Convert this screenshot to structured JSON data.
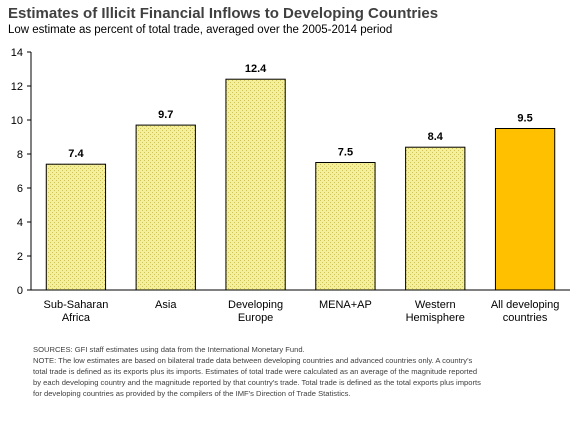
{
  "chart_data": {
    "type": "bar",
    "title": "Estimates of Illicit Financial Inflows to Developing Countries",
    "subtitle": "Low estimate as percent of total trade, averaged over the 2005-2014 period",
    "categories": [
      [
        "Sub-Saharan",
        "Africa"
      ],
      [
        "Asia"
      ],
      [
        "Developing",
        "Europe"
      ],
      [
        "MENA+AP"
      ],
      [
        "Western",
        "Hemisphere"
      ],
      [
        "All developing",
        "countries"
      ]
    ],
    "values": [
      7.4,
      9.7,
      12.4,
      7.5,
      8.4,
      9.5
    ],
    "data_labels": [
      "7.4",
      "9.7",
      "12.4",
      "7.5",
      "8.4",
      "9.5"
    ],
    "ylim": [
      0,
      14
    ],
    "yticks": [
      0,
      2,
      4,
      6,
      8,
      10,
      12,
      14
    ],
    "grid": false,
    "legend": "none",
    "colors": {
      "regional_fill": "#f3ef9a",
      "regional_hatch": "#cfc35a",
      "total_fill": "#ffc000",
      "bar_border": "#000000"
    },
    "highlight_index": 5
  },
  "notes": {
    "sources": "SOURCES: GFI staff estimates using data from the International Monetary Fund.",
    "note_lines": [
      "NOTE: The low estimates are based on bilateral trade data between developing countries and advanced countries only.  A country's",
      "total trade is defined as its exports plus its imports.  Estimates of total trade were calculated as an average of the magnitude reported",
      "by each developing country and the magnitude reported by that country's trade. Total trade is defined as the total exports plus imports",
      "for developing countries as provided by the compilers of the IMF's Direction of Trade Statistics."
    ]
  }
}
